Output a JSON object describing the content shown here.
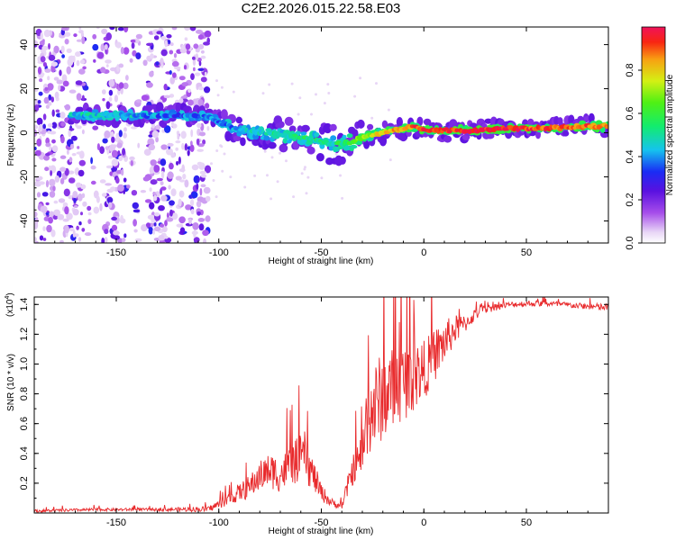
{
  "title": "C2E2.2026.015.22.58.E03",
  "colors": {
    "frame": "#000000",
    "snr_line": "#e8292b",
    "background": "#ffffff"
  },
  "chart_data": [
    {
      "type": "heatmap",
      "name": "spectrogram",
      "xlabel": "Height of straight line (km)",
      "ylabel": "Frequency (Hz)",
      "xlim": [
        -190,
        90
      ],
      "ylim": [
        -50,
        48
      ],
      "xticks": [
        -150,
        -100,
        -50,
        0,
        50
      ],
      "yticks": [
        -40,
        -20,
        0,
        20,
        40
      ],
      "xtick_labels": [
        "-150",
        "-100",
        "-50",
        "0",
        "50"
      ],
      "ytick_labels": [
        "-40",
        "-20",
        "0",
        "20",
        "40"
      ],
      "colorbar": {
        "label": "Normalized spectral amplitude",
        "range": [
          0,
          1
        ],
        "ticks": [
          0.0,
          0.2,
          0.4,
          0.6,
          0.8
        ],
        "tick_labels": [
          "0.0",
          "0.2",
          "0.4",
          "0.6",
          "0.8"
        ]
      },
      "ridge": {
        "x": [
          -170,
          -150,
          -135,
          -120,
          -105,
          -90,
          -80,
          -70,
          -60,
          -50,
          -45,
          -40,
          -35,
          -30,
          -20,
          -10,
          -5,
          0,
          10,
          20,
          40,
          60,
          80,
          90
        ],
        "freq": [
          8,
          8,
          8,
          8,
          7,
          1,
          0,
          -1,
          -2,
          -4,
          -5,
          -5,
          -4,
          -2,
          0,
          2,
          3,
          1,
          1,
          1,
          2,
          2,
          3,
          3
        ],
        "amplitude": [
          0.45,
          0.45,
          0.4,
          0.35,
          0.4,
          0.4,
          0.45,
          0.5,
          0.55,
          0.5,
          0.5,
          0.55,
          0.6,
          0.7,
          0.8,
          0.85,
          0.9,
          0.9,
          0.9,
          0.95,
          0.95,
          0.9,
          0.9,
          0.9
        ]
      },
      "noise_region": [
        -190,
        -105
      ]
    },
    {
      "type": "line",
      "name": "snr",
      "xlabel": "Height of straight line (km)",
      "ylabel": "SNR (10 * v/v)",
      "multiplier_label": "(x10",
      "multiplier_exp": "4",
      "multiplier_close": ")",
      "xlim": [
        -190,
        90
      ],
      "ylim": [
        0,
        1.45
      ],
      "xticks": [
        -150,
        -100,
        -50,
        0,
        50
      ],
      "yticks": [
        0.2,
        0.4,
        0.6,
        0.8,
        1.0,
        1.2,
        1.4
      ],
      "xtick_labels": [
        "-150",
        "-100",
        "-50",
        "0",
        "50"
      ],
      "ytick_labels": [
        "0.2",
        "0.4",
        "0.6",
        "0.8",
        "1.0",
        "1.2",
        "1.4"
      ],
      "series": [
        {
          "name": "SNR",
          "x": [
            -190,
            -160,
            -130,
            -105,
            -100,
            -95,
            -90,
            -85,
            -80,
            -75,
            -70,
            -65,
            -60,
            -55,
            -50,
            -45,
            -40,
            -38,
            -35,
            -30,
            -28,
            -25,
            -20,
            -15,
            -10,
            -5,
            0,
            5,
            10,
            15,
            20,
            25,
            30,
            40,
            50,
            60,
            70,
            80,
            90
          ],
          "y": [
            0.01,
            0.02,
            0.02,
            0.02,
            0.05,
            0.08,
            0.12,
            0.15,
            0.22,
            0.25,
            0.22,
            0.28,
            0.32,
            0.25,
            0.12,
            0.06,
            0.04,
            0.12,
            0.25,
            0.35,
            0.55,
            0.6,
            0.7,
            0.75,
            0.8,
            0.85,
            0.9,
            1.0,
            1.1,
            1.2,
            1.25,
            1.32,
            1.36,
            1.39,
            1.4,
            1.4,
            1.39,
            1.38,
            1.37
          ],
          "noise_amplitude": [
            0.01,
            0.01,
            0.01,
            0.02,
            0.03,
            0.04,
            0.06,
            0.08,
            0.1,
            0.12,
            0.12,
            0.14,
            0.16,
            0.12,
            0.06,
            0.03,
            0.02,
            0.06,
            0.1,
            0.15,
            0.25,
            0.3,
            0.3,
            0.28,
            0.26,
            0.24,
            0.2,
            0.18,
            0.15,
            0.1,
            0.06,
            0.04,
            0.03,
            0.02,
            0.02,
            0.02,
            0.02,
            0.02,
            0.03
          ]
        }
      ]
    }
  ]
}
